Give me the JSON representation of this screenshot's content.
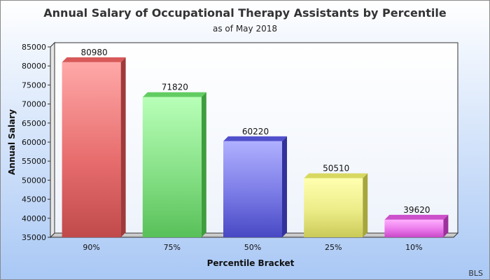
{
  "chart_data": {
    "type": "bar",
    "title": "Annual Salary of Occupational Therapy Assistants by Percentile",
    "subtitle": "as of May 2018",
    "xlabel": "Percentile Bracket",
    "ylabel": "Annual Salary",
    "categories": [
      "90%",
      "75%",
      "50%",
      "25%",
      "10%"
    ],
    "values": [
      80980,
      71820,
      60220,
      50510,
      39620
    ],
    "data_labels": [
      "80980",
      "71820",
      "60220",
      "50510",
      "39620"
    ],
    "ylim": [
      35000,
      85000
    ],
    "yticks": [
      "35000",
      "40000",
      "45000",
      "50000",
      "55000",
      "60000",
      "65000",
      "70000",
      "75000",
      "80000",
      "85000"
    ],
    "grid": false,
    "legend": "none",
    "colors": [
      {
        "light": "#ffa8a8",
        "mid": "#e86e6e",
        "dark": "#c04a4a",
        "side": "#a03a3a",
        "top": "#d85858"
      },
      {
        "light": "#b8ffb8",
        "mid": "#86e086",
        "dark": "#58c058",
        "side": "#3e9e3e",
        "top": "#62cc62"
      },
      {
        "light": "#b0b0ff",
        "mid": "#7a7ae6",
        "dark": "#4848c4",
        "side": "#32329c",
        "top": "#5050cc"
      },
      {
        "light": "#ffffb0",
        "mid": "#ecec88",
        "dark": "#caca58",
        "side": "#a6a63c",
        "top": "#d8d860"
      },
      {
        "light": "#ffb0ff",
        "mid": "#ea78ea",
        "dark": "#c848c8",
        "side": "#9c309c",
        "top": "#cc50cc"
      }
    ],
    "background_top": "#ffffff",
    "background_bottom": "#a9c8f5"
  },
  "source": "BLS"
}
